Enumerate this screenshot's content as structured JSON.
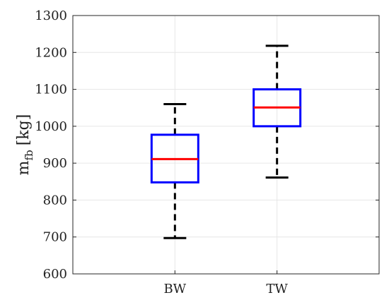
{
  "chart_data": {
    "type": "boxplot",
    "ylabel": "m",
    "ylabel_subscript": "fb",
    "ylabel_unit": "[kg]",
    "ylim": [
      600,
      1300
    ],
    "yticks": [
      600,
      700,
      800,
      900,
      1000,
      1100,
      1200,
      1300
    ],
    "grid": true,
    "categories": [
      "BW",
      "TW"
    ],
    "boxes": [
      {
        "category": "BW",
        "whisker_low": 697,
        "q1": 848,
        "median": 911,
        "q3": 977,
        "whisker_high": 1060
      },
      {
        "category": "TW",
        "whisker_low": 861,
        "q1": 1000,
        "median": 1051,
        "q3": 1100,
        "whisker_high": 1218
      }
    ],
    "colors": {
      "box": "#0000ff",
      "median": "#ff0000",
      "whisker": "#000000",
      "grid": "#e6e6e6",
      "axis": "#262626"
    }
  }
}
